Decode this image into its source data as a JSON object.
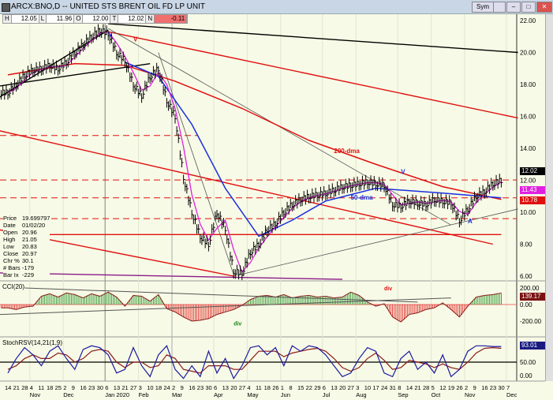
{
  "window": {
    "title": "ARCX:BNO,D -- UNITED STS BRENT OIL FD LP UNIT",
    "buttons": [
      "Sym",
      "",
      "–",
      "□",
      "✕"
    ]
  },
  "ohlc_bar": [
    {
      "k": "H",
      "v": "12.05"
    },
    {
      "k": "L",
      "v": "11.96"
    },
    {
      "k": "O",
      "v": "12.00"
    },
    {
      "k": "T",
      "v": "12.02"
    },
    {
      "k": "N",
      "v": "-0.11"
    }
  ],
  "info": [
    [
      "Price",
      "19.699797"
    ],
    [
      "Date",
      "01/02/20"
    ],
    [
      "Open",
      "20.96"
    ],
    [
      "High",
      "21.05"
    ],
    [
      "Low",
      "20.83"
    ],
    [
      "Close",
      "20.97"
    ],
    [
      "Chr %",
      "30.1"
    ],
    [
      "# Bars",
      "-179"
    ],
    [
      "Bar Ix",
      "-229"
    ]
  ],
  "colors": {
    "background": "#f7fae6",
    "price": "#000000",
    "dma200": "#e01010",
    "dma50": "#1a2ee0",
    "short_ma": "#e020e0",
    "cci_pos": "#1a8a1a",
    "cci_neg": "#e01010",
    "stoch_fast": "#1a1aa0",
    "stoch_slow": "#8b1a1a"
  },
  "chart_data": [
    {
      "type": "line",
      "panel": "price",
      "ylim": [
        6,
        22
      ],
      "yticks": [
        "22.00",
        "20.00",
        "18.00",
        "16.00",
        "14.00",
        "12.00",
        "10.00",
        "8.00",
        "6.00"
      ],
      "x_week_start": "2019-10-14",
      "close": [
        17.5,
        18.0,
        18.6,
        18.9,
        19.0,
        19.2,
        19.0,
        19.4,
        20.0,
        20.5,
        21.0,
        21.4,
        21.2,
        20.0,
        19.5,
        18.0,
        17.3,
        18.5,
        19.0,
        17.0,
        16.0,
        12.2,
        10.0,
        8.5,
        8.0,
        10.0,
        9.0,
        6.3,
        6.2,
        7.5,
        8.0,
        8.9,
        9.3,
        10.0,
        10.5,
        10.8,
        11.0,
        11.1,
        11.2,
        11.4,
        11.6,
        11.7,
        11.8,
        11.9,
        11.8,
        11.7,
        10.5,
        10.4,
        10.7,
        10.6,
        10.5,
        10.8,
        10.7,
        10.6,
        9.5,
        10.2,
        11.0,
        11.3,
        11.8,
        12.0
      ],
      "dma200": [
        [
          0,
          18.6
        ],
        [
          8,
          19.3
        ],
        [
          14,
          19.2
        ],
        [
          20,
          18.2
        ],
        [
          28,
          16.5
        ],
        [
          36,
          14.5
        ],
        [
          44,
          13.0
        ],
        [
          52,
          11.6
        ],
        [
          59,
          10.8
        ]
      ],
      "dma50": [
        [
          14,
          19.4
        ],
        [
          18,
          18.5
        ],
        [
          22,
          15.5
        ],
        [
          26,
          11.5
        ],
        [
          30,
          8.5
        ],
        [
          34,
          9.5
        ],
        [
          38,
          10.7
        ],
        [
          44,
          11.5
        ],
        [
          52,
          11.2
        ],
        [
          59,
          10.9
        ]
      ],
      "trendlines": [
        {
          "color": "#000000",
          "from": [
            12,
            21.8
          ],
          "to": [
            61,
            20.0
          ]
        },
        {
          "color": "#e01010",
          "from": [
            12,
            21.3
          ],
          "to": [
            61,
            15.9
          ]
        },
        {
          "color": "#e01010",
          "from": [
            -1,
            15.1
          ],
          "to": [
            58,
            8.0
          ]
        },
        {
          "color": "#e01010",
          "from": [
            -1,
            8.9
          ],
          "to": [
            27,
            6.0
          ]
        },
        {
          "color": "#e01010",
          "from": [
            0,
            8.6
          ],
          "to": [
            59,
            8.6
          ]
        },
        {
          "color": "#000000",
          "from": [
            -1,
            17.2
          ],
          "to": [
            12,
            21.4
          ]
        },
        {
          "color": "#000000",
          "from": [
            -1,
            17.9
          ],
          "to": [
            17,
            19.3
          ]
        },
        {
          "color": "#555555",
          "from": [
            12,
            21.5
          ],
          "to": [
            53,
            9.2
          ]
        },
        {
          "color": "#555555",
          "from": [
            27,
            6.0
          ],
          "to": [
            61,
            10.2
          ]
        },
        {
          "color": "#555555",
          "from": [
            18,
            20.0
          ],
          "to": [
            27,
            6.1
          ]
        },
        {
          "color": "#8a1a8a",
          "from": [
            -1,
            6.2
          ],
          "to": [
            40,
            5.8
          ]
        }
      ],
      "dashed_levels": [
        [
          12.02,
          "#e01010"
        ],
        [
          10.9,
          "#e01010"
        ],
        [
          9.6,
          "#e01010"
        ],
        [
          14.8,
          "#e01010"
        ]
      ],
      "annotations": [
        {
          "text": "200-dma",
          "at": [
            39,
            13.7
          ],
          "color": "#e01010"
        },
        {
          "text": "50-dma",
          "at": [
            41,
            10.8
          ],
          "color": "#1a2ee0"
        },
        {
          "text": "V",
          "at": [
            47,
            12.4
          ],
          "color": "#1a2ee0"
        },
        {
          "text": "V",
          "at": [
            12,
            21.0
          ],
          "color": "#1a2ee0"
        },
        {
          "text": "V",
          "at": [
            15,
            20.7
          ],
          "color": "#e01010"
        },
        {
          "text": "A",
          "at": [
            55,
            9.3
          ],
          "color": "#1a2ee0"
        }
      ],
      "last_labels": [
        {
          "v": "12.02",
          "bg": "#000000"
        },
        {
          "v": "11.43",
          "bg": "#e020e0"
        },
        {
          "v": "10.78",
          "bg": "#e01010"
        }
      ]
    },
    {
      "type": "bar",
      "panel": "cci",
      "title": "CCI(20)",
      "ylim": [
        -300,
        250
      ],
      "yticks": [
        "200.00",
        "0.00",
        "-200.00"
      ],
      "last": "139.17",
      "values": [
        -40,
        -60,
        -30,
        -20,
        100,
        130,
        90,
        140,
        120,
        80,
        130,
        100,
        150,
        90,
        -20,
        110,
        100,
        40,
        120,
        -50,
        -90,
        -150,
        -200,
        -190,
        -170,
        -120,
        -90,
        -60,
        -10,
        60,
        100,
        110,
        90,
        120,
        80,
        100,
        110,
        90,
        100,
        80,
        90,
        150,
        110,
        30,
        -20,
        10,
        -150,
        -210,
        -120,
        -100,
        -60,
        -40,
        20,
        -60,
        -150,
        -20,
        90,
        110,
        120,
        139
      ],
      "annotations": [
        {
          "text": "div",
          "at": [
            27,
            -250
          ],
          "color": "#1a8a1a"
        },
        {
          "text": "div",
          "at": [
            45,
            170
          ],
          "color": "#e01010"
        }
      ]
    },
    {
      "type": "line",
      "panel": "stoch",
      "title": "StochRSV(14,21(1,9)",
      "ylim": [
        0,
        100
      ],
      "yticks": [
        "50.00",
        "0.00"
      ],
      "last": "93.01",
      "fast": [
        20,
        60,
        90,
        70,
        40,
        80,
        95,
        60,
        30,
        85,
        95,
        90,
        70,
        20,
        30,
        90,
        40,
        10,
        70,
        95,
        30,
        5,
        40,
        10,
        80,
        20,
        60,
        5,
        40,
        90,
        95,
        70,
        90,
        40,
        95,
        80,
        95,
        90,
        70,
        40,
        10,
        20,
        60,
        90,
        80,
        20,
        10,
        60,
        80,
        30,
        50,
        20,
        70,
        10,
        30,
        80,
        95,
        95,
        93,
        93
      ],
      "slow": [
        30,
        40,
        60,
        70,
        60,
        60,
        75,
        70,
        50,
        60,
        80,
        85,
        80,
        50,
        35,
        50,
        50,
        35,
        40,
        70,
        60,
        30,
        25,
        20,
        40,
        40,
        40,
        30,
        30,
        55,
        80,
        80,
        80,
        65,
        75,
        80,
        85,
        88,
        80,
        60,
        35,
        25,
        35,
        60,
        75,
        55,
        30,
        35,
        55,
        50,
        45,
        35,
        45,
        35,
        30,
        50,
        75,
        88,
        90,
        88
      ]
    },
    {
      "type": "axis",
      "xticks": [
        [
          "14",
          ""
        ],
        [
          "21",
          ""
        ],
        [
          "28",
          ""
        ],
        [
          "4",
          "Nov"
        ],
        [
          "11",
          ""
        ],
        [
          "18",
          ""
        ],
        [
          "25",
          ""
        ],
        [
          "2",
          "Dec"
        ],
        [
          "9",
          ""
        ],
        [
          "16",
          ""
        ],
        [
          "23",
          ""
        ],
        [
          "30",
          ""
        ],
        [
          "6",
          "Jan 2020"
        ],
        [
          "13",
          ""
        ],
        [
          "21",
          ""
        ],
        [
          "27",
          ""
        ],
        [
          "3",
          "Feb"
        ],
        [
          "10",
          ""
        ],
        [
          "18",
          ""
        ],
        [
          "24",
          ""
        ],
        [
          "2",
          "Mar"
        ],
        [
          "9",
          ""
        ],
        [
          "16",
          ""
        ],
        [
          "23",
          ""
        ],
        [
          "30",
          ""
        ],
        [
          "6",
          "Apr"
        ],
        [
          "13",
          ""
        ],
        [
          "20",
          ""
        ],
        [
          "27",
          ""
        ],
        [
          "4",
          "May"
        ],
        [
          "11",
          ""
        ],
        [
          "18",
          ""
        ],
        [
          "26",
          ""
        ],
        [
          "1",
          "Jun"
        ],
        [
          "8",
          ""
        ],
        [
          "15",
          ""
        ],
        [
          "22",
          ""
        ],
        [
          "29",
          ""
        ],
        [
          "6",
          "Jul"
        ],
        [
          "13",
          ""
        ],
        [
          "20",
          ""
        ],
        [
          "27",
          ""
        ],
        [
          "3",
          "Aug"
        ],
        [
          "10",
          ""
        ],
        [
          "17",
          ""
        ],
        [
          "24",
          ""
        ],
        [
          "31",
          ""
        ],
        [
          "8",
          "Sep"
        ],
        [
          "14",
          ""
        ],
        [
          "21",
          ""
        ],
        [
          "28",
          ""
        ],
        [
          "5",
          "Oct"
        ],
        [
          "12",
          ""
        ],
        [
          "19",
          ""
        ],
        [
          "26",
          ""
        ],
        [
          "2",
          "Nov"
        ],
        [
          "9",
          ""
        ],
        [
          "16",
          ""
        ],
        [
          "23",
          ""
        ],
        [
          "30",
          ""
        ],
        [
          "7",
          "Dec"
        ]
      ]
    }
  ]
}
